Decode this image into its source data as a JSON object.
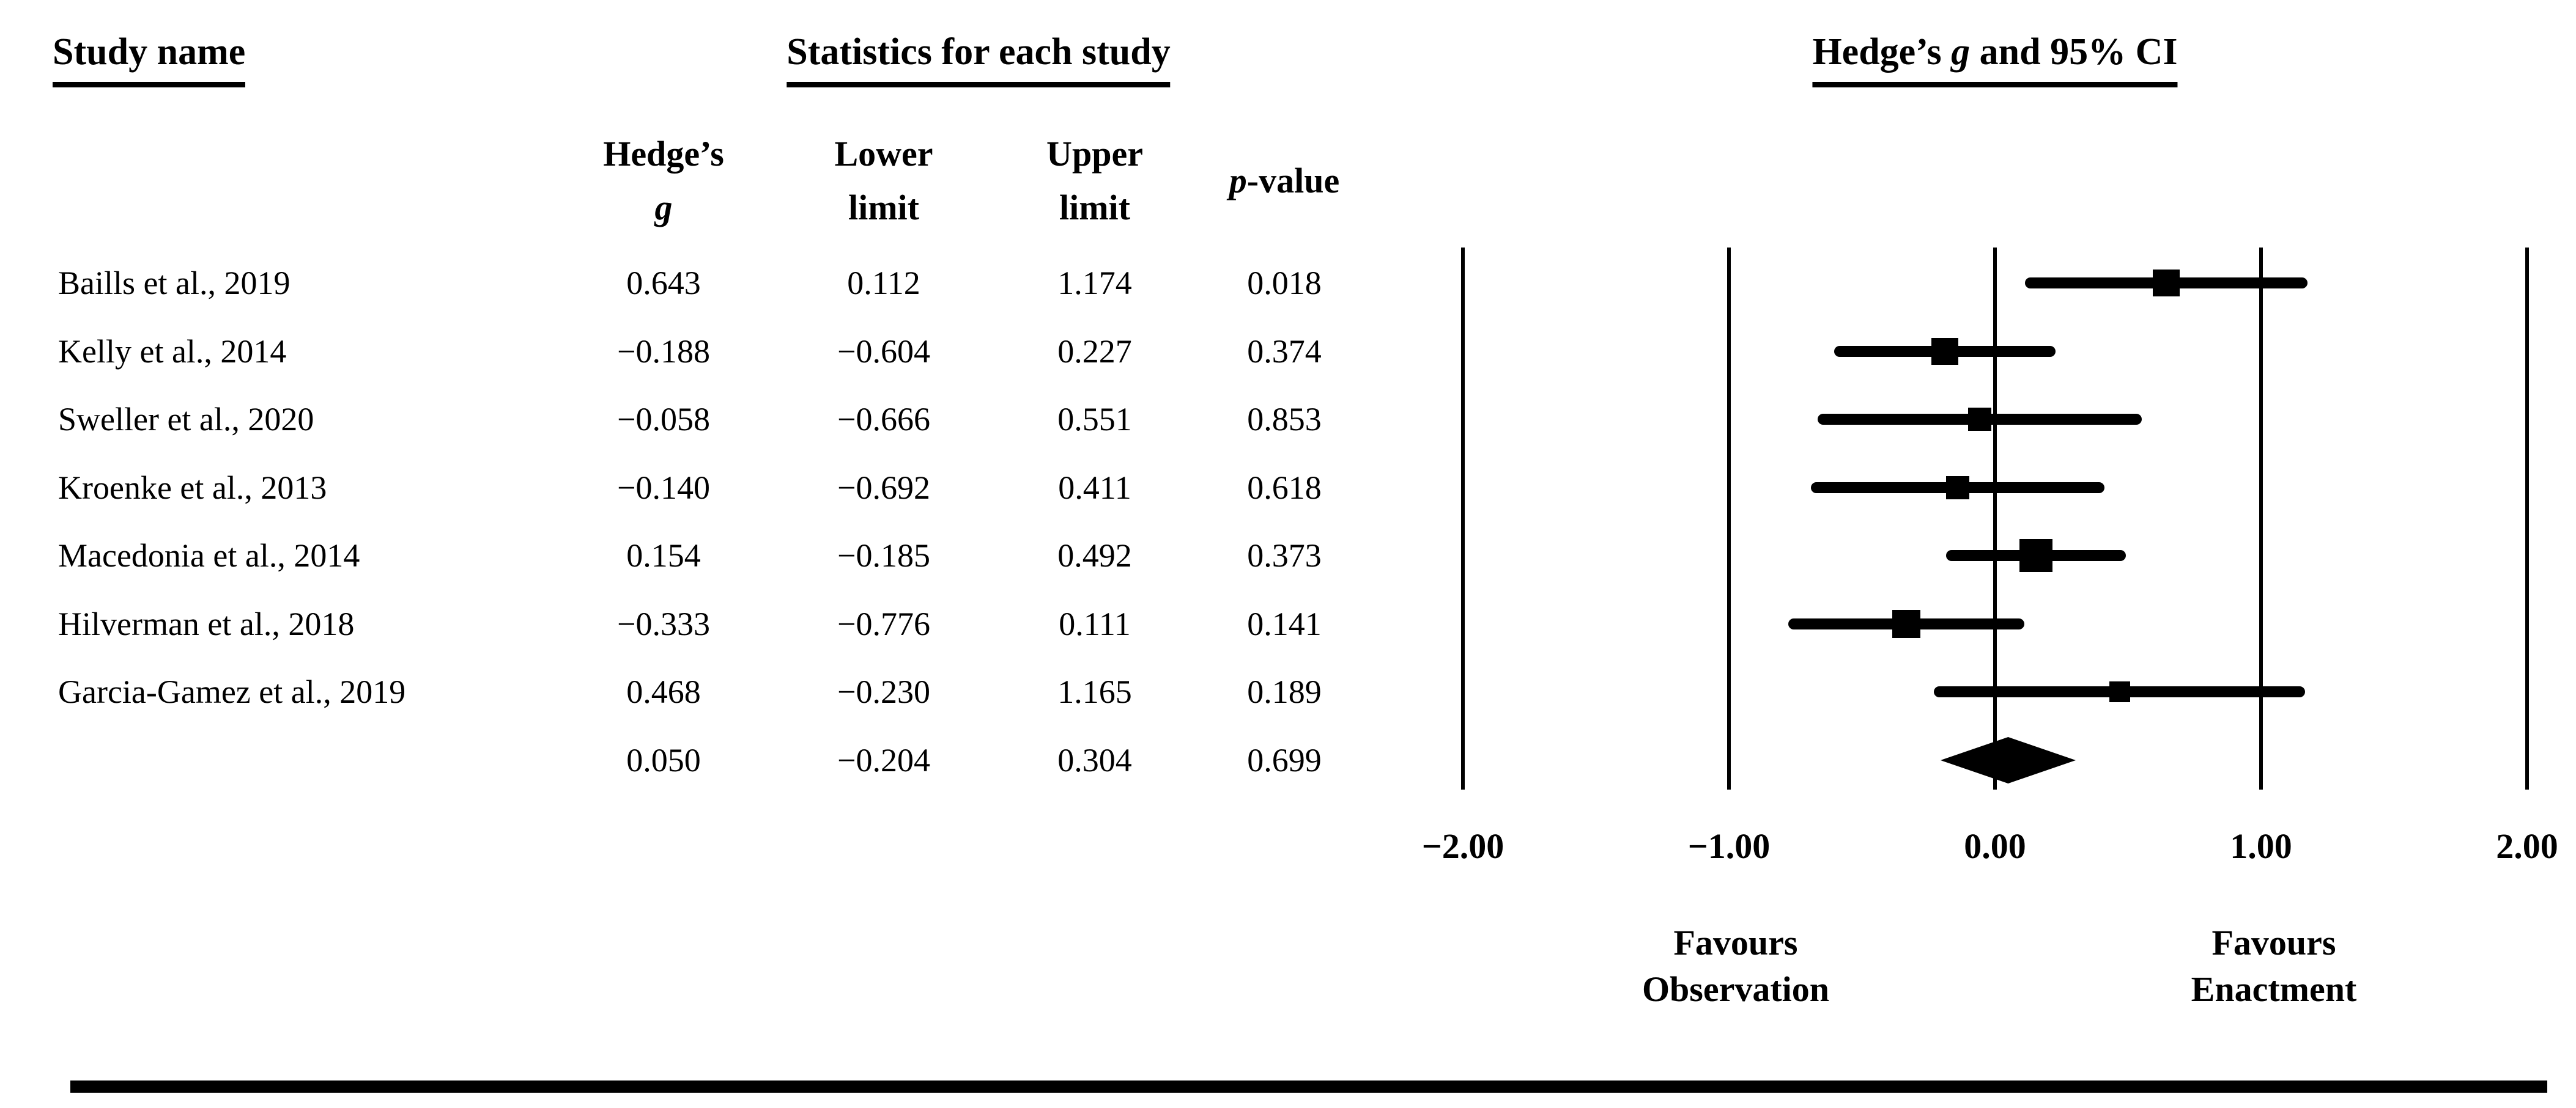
{
  "figure": {
    "study_name_header": "Study name",
    "statistics_header": "Statistics for each study",
    "plot_header": {
      "pre": "Hedge’s ",
      "italic": "g",
      "post": " and 95% CI"
    }
  },
  "columns": {
    "hedges_g_line1": "Hedge’s",
    "hedges_g_line2": "g",
    "lower_line1": "Lower",
    "lower_line2": "limit",
    "upper_line1": "Upper",
    "upper_line2": "limit",
    "p_value_italic": "p",
    "p_value_rest": "-value"
  },
  "chart_data": {
    "type": "forest",
    "effect_measure": "Hedge's g",
    "ci_level": "95%",
    "xlim": [
      -2.15,
      2.15
    ],
    "x_ticks": [
      -2,
      -1,
      0,
      1,
      2
    ],
    "x_tick_labels": [
      "−2.00",
      "−1.00",
      "0.00",
      "1.00",
      "2.00"
    ],
    "footer_left": [
      "Favours",
      "Observation"
    ],
    "footer_right": [
      "Favours",
      "Enactment"
    ],
    "grid": "vertical-reference-lines",
    "legend": "none",
    "studies": [
      {
        "name": "Baills et al., 2019",
        "g": 0.643,
        "lower": 0.112,
        "upper": 1.174,
        "p": 0.018,
        "g_text": "0.643",
        "lower_text": "0.112",
        "upper_text": "1.174",
        "p_text": "0.018",
        "marker_px": 44
      },
      {
        "name": "Kelly et al., 2014",
        "g": -0.188,
        "lower": -0.604,
        "upper": 0.227,
        "p": 0.374,
        "g_text": "−0.188",
        "lower_text": "−0.604",
        "upper_text": "0.227",
        "p_text": "0.374",
        "marker_px": 44
      },
      {
        "name": "Sweller et al., 2020",
        "g": -0.058,
        "lower": -0.666,
        "upper": 0.551,
        "p": 0.853,
        "g_text": "−0.058",
        "lower_text": "−0.666",
        "upper_text": "0.551",
        "p_text": "0.853",
        "marker_px": 38
      },
      {
        "name": "Kroenke et al., 2013",
        "g": -0.14,
        "lower": -0.692,
        "upper": 0.411,
        "p": 0.618,
        "g_text": "−0.140",
        "lower_text": "−0.692",
        "upper_text": "0.411",
        "p_text": "0.618",
        "marker_px": 38
      },
      {
        "name": "Macedonia et al., 2014",
        "g": 0.154,
        "lower": -0.185,
        "upper": 0.492,
        "p": 0.373,
        "g_text": "0.154",
        "lower_text": "−0.185",
        "upper_text": "0.492",
        "p_text": "0.373",
        "marker_px": 54
      },
      {
        "name": "Hilverman et al., 2018",
        "g": -0.333,
        "lower": -0.776,
        "upper": 0.111,
        "p": 0.141,
        "g_text": "−0.333",
        "lower_text": "−0.776",
        "upper_text": "0.111",
        "p_text": "0.141",
        "marker_px": 46
      },
      {
        "name": "Garcia-Gamez et al., 2019",
        "g": 0.468,
        "lower": -0.23,
        "upper": 1.165,
        "p": 0.189,
        "g_text": "0.468",
        "lower_text": "−0.230",
        "upper_text": "1.165",
        "p_text": "0.189",
        "marker_px": 34
      }
    ],
    "overall": {
      "name": "",
      "g": 0.05,
      "lower": -0.204,
      "upper": 0.304,
      "p": 0.699,
      "g_text": "0.050",
      "lower_text": "−0.204",
      "upper_text": "0.304",
      "p_text": "0.699"
    }
  }
}
